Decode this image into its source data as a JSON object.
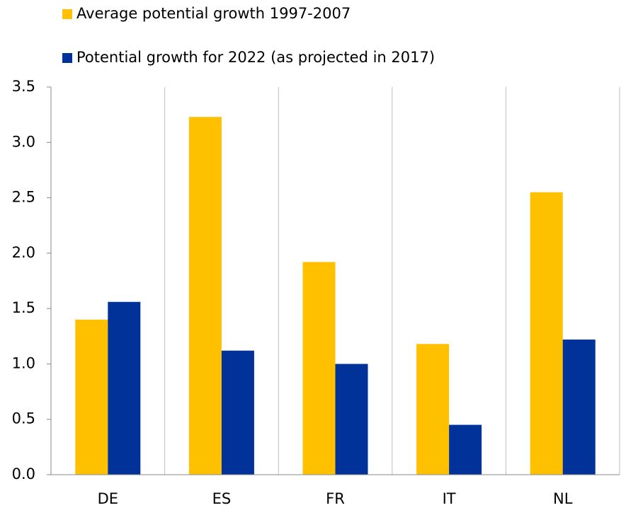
{
  "chart_data": {
    "type": "bar",
    "categories": [
      "DE",
      "ES",
      "FR",
      "IT",
      "NL"
    ],
    "series": [
      {
        "name": "Average potential growth 1997-2007",
        "color": "#ffc000",
        "values": [
          1.4,
          3.23,
          1.92,
          1.18,
          2.55
        ]
      },
      {
        "name": "Potential growth for 2022 (as projected in 2017)",
        "color": "#003299",
        "values": [
          1.56,
          1.12,
          1.0,
          0.45,
          1.22
        ]
      }
    ],
    "ylim": [
      0,
      3.5
    ],
    "yticks": [
      {
        "value": 0,
        "label": "0.0"
      },
      0.5,
      {
        "value": 1,
        "label": "1.0"
      },
      1.5,
      {
        "value": 2,
        "label": "2.0"
      },
      2.5,
      {
        "value": 3,
        "label": "3.0"
      },
      3.5
    ],
    "legend": "top-left"
  }
}
